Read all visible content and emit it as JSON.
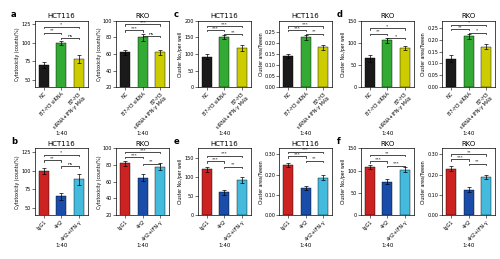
{
  "chart_data": [
    {
      "type": "bar",
      "title": "HCT116",
      "ylabel": "Cytotoxicity (counts/%)",
      "xlabel": "1:40",
      "categories": [
        "NC",
        "B7-H3 siRNA",
        "B7-H3\nsiRNA+IFN-γ MAb"
      ],
      "values": [
        70,
        100,
        78
      ],
      "errors": [
        4,
        3,
        5
      ],
      "colors": [
        "#1a1a1a",
        "#33aa33",
        "#cccc00"
      ],
      "ylim": [
        40,
        130
      ],
      "yticks": [
        50,
        75,
        100,
        125
      ],
      "sig_brackets": [
        {
          "x1": 0,
          "x2": 1,
          "y": 112,
          "text": "**"
        },
        {
          "x1": 0,
          "x2": 2,
          "y": 120,
          "text": "*"
        },
        {
          "x1": 1,
          "x2": 2,
          "y": 105,
          "text": "ns"
        }
      ],
      "annotations": [
        {
          "text": "a"
        }
      ]
    },
    {
      "type": "bar",
      "title": "RKO",
      "ylabel": "Cytotoxicity (counts/%)",
      "xlabel": "1:40",
      "categories": [
        "NC",
        "B7-H3 siRNA",
        "B7-H3\nsiRNA+IFN-γ MAb"
      ],
      "values": [
        62,
        80,
        62
      ],
      "errors": [
        3,
        4,
        3
      ],
      "colors": [
        "#1a1a1a",
        "#33aa33",
        "#cccc00"
      ],
      "ylim": [
        20,
        100
      ],
      "yticks": [
        20,
        40,
        60,
        80,
        100
      ],
      "sig_brackets": [
        {
          "x1": 0,
          "x2": 1,
          "y": 87,
          "text": "***"
        },
        {
          "x1": 0,
          "x2": 2,
          "y": 94,
          "text": "***"
        },
        {
          "x1": 1,
          "x2": 2,
          "y": 80,
          "text": "ns"
        }
      ]
    },
    {
      "type": "bar",
      "title": "HCT116",
      "ylabel": "Cluster No./per well",
      "xlabel": "1:40",
      "categories": [
        "NC",
        "B7-H3 siRNA",
        "B7-H3\nsiRNA+IFN-γ MAb"
      ],
      "values": [
        92,
        150,
        118
      ],
      "errors": [
        7,
        6,
        8
      ],
      "colors": [
        "#1a1a1a",
        "#33aa33",
        "#cccc00"
      ],
      "ylim": [
        0,
        200
      ],
      "yticks": [
        0,
        50,
        100,
        150,
        200
      ],
      "sig_brackets": [
        {
          "x1": 0,
          "x2": 1,
          "y": 168,
          "text": "***"
        },
        {
          "x1": 0,
          "x2": 2,
          "y": 180,
          "text": "***"
        },
        {
          "x1": 1,
          "x2": 2,
          "y": 156,
          "text": "**"
        }
      ],
      "annotations": [
        {
          "text": "c"
        }
      ]
    },
    {
      "type": "bar",
      "title": "HCT116",
      "ylabel": "Cluster area/Tween",
      "xlabel": "1:40",
      "categories": [
        "NC",
        "B7-H3 siRNA",
        "B7-H3\nsiRNA+IFN-γ MAb"
      ],
      "values": [
        0.14,
        0.225,
        0.18
      ],
      "errors": [
        0.01,
        0.01,
        0.01
      ],
      "colors": [
        "#1a1a1a",
        "#33aa33",
        "#cccc00"
      ],
      "ylim": [
        0.0,
        0.3
      ],
      "yticks": [
        {
          "value": 0.0,
          "label": "0.00"
        },
        0.05,
        {
          "value": 0.1,
          "label": "0.10"
        },
        0.15,
        {
          "value": 0.2,
          "label": "0.20"
        },
        0.25
      ],
      "sig_brackets": [
        {
          "x1": 0,
          "x2": 1,
          "y": 0.252,
          "text": "***"
        },
        {
          "x1": 0,
          "x2": 2,
          "y": 0.268,
          "text": "***"
        },
        {
          "x1": 1,
          "x2": 2,
          "y": 0.236,
          "text": "**"
        }
      ]
    },
    {
      "type": "bar",
      "title": "RKO",
      "ylabel": "Cluster No./per well",
      "xlabel": "1:40",
      "categories": [
        "NC",
        "B7-H3 siRNA",
        "B7-H3\nsiRNA+IFN-γ MAb"
      ],
      "values": [
        65,
        106,
        88
      ],
      "errors": [
        8,
        6,
        5
      ],
      "colors": [
        "#1a1a1a",
        "#33aa33",
        "#cccc00"
      ],
      "ylim": [
        0,
        150
      ],
      "yticks": [
        0,
        50,
        100,
        150
      ],
      "sig_brackets": [
        {
          "x1": 0,
          "x2": 1,
          "y": 118,
          "text": "**"
        },
        {
          "x1": 0,
          "x2": 2,
          "y": 130,
          "text": "*"
        },
        {
          "x1": 1,
          "x2": 2,
          "y": 108,
          "text": "*"
        }
      ],
      "annotations": [
        {
          "text": "d"
        }
      ]
    },
    {
      "type": "bar",
      "title": "RKO",
      "ylabel": "Cluster area/Tween",
      "xlabel": "1:40",
      "categories": [
        "NC",
        "B7-H3 siRNA",
        "B7-H3\nsiRNA+IFN-γ MAb"
      ],
      "values": [
        0.12,
        0.215,
        0.17
      ],
      "errors": [
        0.015,
        0.01,
        0.01
      ],
      "colors": [
        "#1a1a1a",
        "#33aa33",
        "#cccc00"
      ],
      "ylim": [
        0.0,
        0.28
      ],
      "yticks": [
        {
          "value": 0.0,
          "label": "0.00"
        },
        0.05,
        {
          "value": 0.1,
          "label": "0.10"
        },
        0.15,
        {
          "value": 0.2,
          "label": "0.20"
        },
        0.25
      ],
      "sig_brackets": [
        {
          "x1": 0,
          "x2": 1,
          "y": 0.24,
          "text": "**"
        },
        {
          "x1": 0,
          "x2": 2,
          "y": 0.258,
          "text": "*"
        },
        {
          "x1": 1,
          "x2": 2,
          "y": 0.224,
          "text": "*"
        }
      ]
    },
    {
      "type": "bar",
      "title": "HCT116",
      "ylabel": "Cytotoxicity (counts/%)",
      "xlabel": "1:40",
      "categories": [
        "IgG1",
        "4H2",
        "4H2+IFN-γ"
      ],
      "values": [
        100,
        65,
        88
      ],
      "errors": [
        4,
        5,
        8
      ],
      "colors": [
        "#cc2222",
        "#1a4daa",
        "#44bbdd"
      ],
      "ylim": [
        40,
        130
      ],
      "yticks": [
        50,
        75,
        100,
        125
      ],
      "sig_brackets": [
        {
          "x1": 0,
          "x2": 1,
          "y": 112,
          "text": "**"
        },
        {
          "x1": 0,
          "x2": 2,
          "y": 120,
          "text": "*"
        },
        {
          "x1": 1,
          "x2": 2,
          "y": 104,
          "text": "ns"
        }
      ],
      "annotations": [
        {
          "text": "b"
        }
      ]
    },
    {
      "type": "bar",
      "title": "RKO",
      "ylabel": "Cytotoxicity (counts/%)",
      "xlabel": "1:40",
      "categories": [
        "IgG1",
        "4H2",
        "4H2+IFN-γ"
      ],
      "values": [
        82,
        65,
        78
      ],
      "errors": [
        3,
        4,
        4
      ],
      "colors": [
        "#cc2222",
        "#1a4daa",
        "#44bbdd"
      ],
      "ylim": [
        20,
        100
      ],
      "yticks": [
        20,
        40,
        60,
        80,
        100
      ],
      "sig_brackets": [
        {
          "x1": 0,
          "x2": 1,
          "y": 88,
          "text": "***"
        },
        {
          "x1": 0,
          "x2": 2,
          "y": 94,
          "text": "***"
        },
        {
          "x1": 1,
          "x2": 2,
          "y": 80,
          "text": "**"
        }
      ]
    },
    {
      "type": "bar",
      "title": "HCT116",
      "ylabel": "Cluster No./per well",
      "xlabel": "1:40",
      "categories": [
        "IgG1",
        "4H2",
        "4H2+IFN-γ"
      ],
      "values": [
        120,
        60,
        92
      ],
      "errors": [
        6,
        7,
        7
      ],
      "colors": [
        "#cc2222",
        "#1a4daa",
        "#44bbdd"
      ],
      "ylim": [
        0,
        175
      ],
      "yticks": [
        0,
        50,
        100,
        150
      ],
      "sig_brackets": [
        {
          "x1": 0,
          "x2": 1,
          "y": 138,
          "text": "***"
        },
        {
          "x1": 0,
          "x2": 2,
          "y": 152,
          "text": "***"
        },
        {
          "x1": 1,
          "x2": 2,
          "y": 124,
          "text": "**"
        }
      ],
      "annotations": [
        {
          "text": "e"
        }
      ]
    },
    {
      "type": "bar",
      "title": "HCT116",
      "ylabel": "Cluster area/Tween",
      "xlabel": "1:40",
      "categories": [
        "IgG1",
        "4H2",
        "4H2+IFN-γ"
      ],
      "values": [
        0.25,
        0.135,
        0.185
      ],
      "errors": [
        0.01,
        0.01,
        0.012
      ],
      "colors": [
        "#cc2222",
        "#1a4daa",
        "#44bbdd"
      ],
      "ylim": [
        0.0,
        0.33
      ],
      "yticks": [
        {
          "value": 0.0,
          "label": "0.00"
        },
        {
          "value": 0.1,
          "label": "0.10"
        },
        {
          "value": 0.2,
          "label": "0.20"
        },
        {
          "value": 0.3,
          "label": "0.30"
        }
      ],
      "sig_brackets": [
        {
          "x1": 0,
          "x2": 1,
          "y": 0.285,
          "text": "***"
        },
        {
          "x1": 0,
          "x2": 2,
          "y": 0.308,
          "text": "***"
        },
        {
          "x1": 1,
          "x2": 2,
          "y": 0.262,
          "text": "**"
        }
      ]
    },
    {
      "type": "bar",
      "title": "RKO",
      "ylabel": "Cluster No./per well",
      "xlabel": "1:40",
      "categories": [
        "IgG1",
        "4H2",
        "4H2+IFN-γ"
      ],
      "values": [
        108,
        75,
        102
      ],
      "errors": [
        5,
        5,
        6
      ],
      "colors": [
        "#cc2222",
        "#1a4daa",
        "#44bbdd"
      ],
      "ylim": [
        0,
        150
      ],
      "yticks": [
        0,
        50,
        100,
        150
      ],
      "sig_brackets": [
        {
          "x1": 0,
          "x2": 1,
          "y": 118,
          "text": "***"
        },
        {
          "x1": 0,
          "x2": 2,
          "y": 132,
          "text": "**"
        },
        {
          "x1": 1,
          "x2": 2,
          "y": 108,
          "text": "***"
        }
      ],
      "annotations": [
        {
          "text": "f"
        }
      ]
    },
    {
      "type": "bar",
      "title": "RKO",
      "ylabel": "Cluster area/Tween",
      "xlabel": "1:40",
      "categories": [
        "IgG1",
        "4H2",
        "4H2+IFN-γ"
      ],
      "values": [
        0.23,
        0.125,
        0.19
      ],
      "errors": [
        0.012,
        0.012,
        0.01
      ],
      "colors": [
        "#cc2222",
        "#1a4daa",
        "#44bbdd"
      ],
      "ylim": [
        0.0,
        0.33
      ],
      "yticks": [
        {
          "value": 0.0,
          "label": "0.00"
        },
        {
          "value": 0.1,
          "label": "0.10"
        },
        {
          "value": 0.2,
          "label": "0.20"
        },
        {
          "value": 0.3,
          "label": "0.30"
        }
      ],
      "sig_brackets": [
        {
          "x1": 0,
          "x2": 1,
          "y": 0.27,
          "text": "***"
        },
        {
          "x1": 0,
          "x2": 2,
          "y": 0.294,
          "text": "**"
        },
        {
          "x1": 1,
          "x2": 2,
          "y": 0.248,
          "text": "**"
        }
      ]
    }
  ]
}
